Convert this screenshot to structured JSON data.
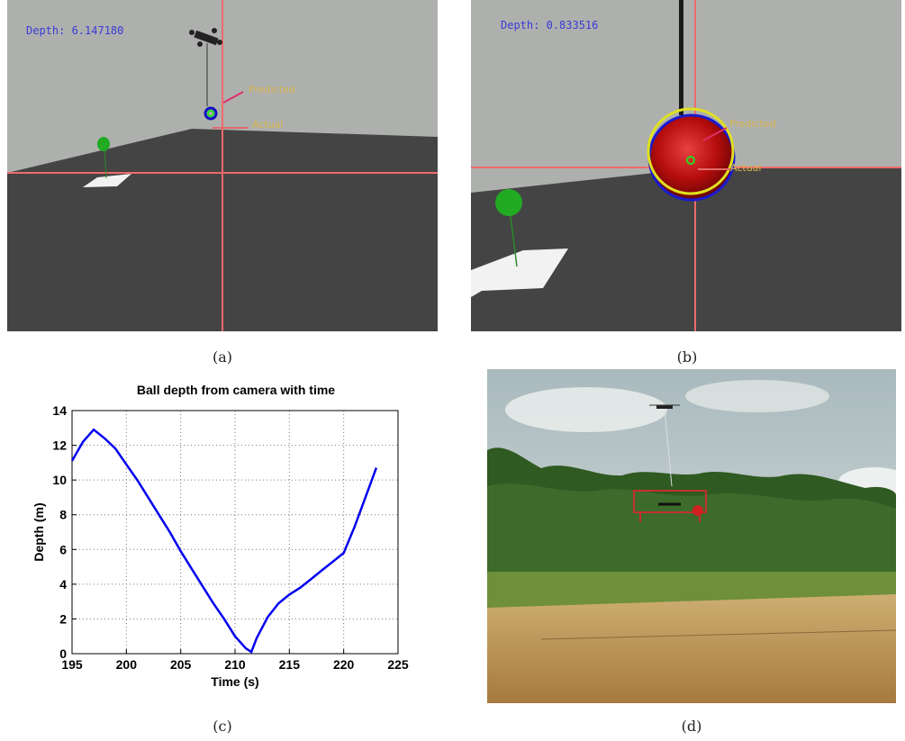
{
  "panels": {
    "a": {
      "caption": "(a)",
      "depth_text": "Depth: 6.147180",
      "predicted_label": "Predicted",
      "actual_label": "Actual"
    },
    "b": {
      "caption": "(b)",
      "depth_text": "Depth: 0.833516",
      "predicted_label": "Predicted",
      "actual_label": "Actual"
    },
    "c": {
      "caption": "(c)"
    },
    "d": {
      "caption": "(d)"
    }
  },
  "colors": {
    "sky_gray": "#aeb0ae",
    "ground_dark": "#444444",
    "crosshair": "#f06a6a",
    "line_blue": "#0000ee",
    "ball_red": "#b50d0d",
    "balloon_green": "#22aa22"
  },
  "chart_data": {
    "type": "line",
    "title": "Ball depth from camera with time",
    "xlabel": "Time (s)",
    "ylabel": "Depth (m)",
    "xlim": [
      195,
      225
    ],
    "ylim": [
      0,
      14
    ],
    "xticks": [
      195,
      200,
      205,
      210,
      215,
      220,
      225
    ],
    "yticks": [
      0,
      2,
      4,
      6,
      8,
      10,
      12,
      14
    ],
    "grid": true,
    "series": [
      {
        "x": [
          195,
          196,
          197,
          198,
          199,
          200,
          201,
          202,
          203,
          204,
          205,
          206,
          207,
          208,
          209,
          210,
          211,
          211.5,
          212,
          213,
          214,
          215,
          216,
          217,
          218,
          219,
          220,
          221,
          222,
          223
        ],
        "values": [
          11.1,
          12.2,
          12.9,
          12.4,
          11.8,
          10.9,
          10.0,
          9.0,
          8.0,
          7.0,
          5.9,
          4.9,
          3.9,
          2.9,
          2.0,
          1.0,
          0.3,
          0.1,
          0.9,
          2.1,
          2.9,
          3.4,
          3.8,
          4.3,
          4.8,
          5.3,
          5.8,
          7.3,
          9.0,
          10.7
        ]
      }
    ]
  }
}
